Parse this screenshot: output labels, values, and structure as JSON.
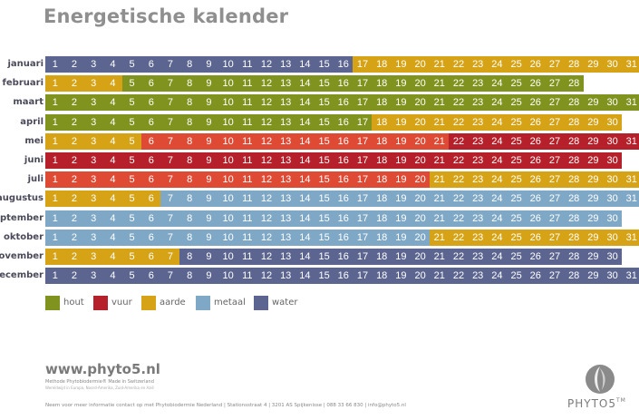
{
  "title": "Energetische kalender",
  "colors": {
    "hout": "#7f931e",
    "vuur": "#b6202a",
    "aarde": "#d7a316",
    "metaal": "#7ea8c6",
    "water": "#5c6590",
    "vuur_light": "#df4a35",
    "aarde_dark": "#cc9a1a"
  },
  "calendar": [
    {
      "month": "januari",
      "days": 31,
      "segments": [
        [
          1,
          16,
          "water"
        ],
        [
          17,
          31,
          "aarde"
        ]
      ]
    },
    {
      "month": "februari",
      "days": 28,
      "segments": [
        [
          1,
          4,
          "aarde"
        ],
        [
          5,
          28,
          "hout"
        ]
      ]
    },
    {
      "month": "maart",
      "days": 31,
      "segments": [
        [
          1,
          31,
          "hout"
        ]
      ]
    },
    {
      "month": "april",
      "days": 30,
      "segments": [
        [
          1,
          17,
          "hout"
        ],
        [
          18,
          30,
          "aarde"
        ]
      ]
    },
    {
      "month": "mei",
      "days": 31,
      "segments": [
        [
          1,
          5,
          "aarde"
        ],
        [
          6,
          21,
          "vuur_light"
        ],
        [
          22,
          31,
          "vuur"
        ]
      ]
    },
    {
      "month": "juni",
      "days": 30,
      "segments": [
        [
          1,
          30,
          "vuur"
        ]
      ]
    },
    {
      "month": "juli",
      "days": 31,
      "segments": [
        [
          1,
          20,
          "vuur_light"
        ],
        [
          21,
          31,
          "aarde"
        ]
      ]
    },
    {
      "month": "augustus",
      "days": 31,
      "segments": [
        [
          1,
          6,
          "aarde"
        ],
        [
          7,
          31,
          "metaal"
        ]
      ]
    },
    {
      "month": "september",
      "days": 30,
      "segments": [
        [
          1,
          30,
          "metaal"
        ]
      ]
    },
    {
      "month": "oktober",
      "days": 31,
      "segments": [
        [
          1,
          20,
          "metaal"
        ],
        [
          21,
          31,
          "aarde"
        ]
      ]
    },
    {
      "month": "november",
      "days": 30,
      "segments": [
        [
          1,
          7,
          "aarde"
        ],
        [
          8,
          30,
          "water"
        ]
      ]
    },
    {
      "month": "december",
      "days": 31,
      "segments": [
        [
          1,
          31,
          "water"
        ]
      ]
    }
  ],
  "legend": [
    {
      "key": "hout",
      "label": "hout"
    },
    {
      "key": "vuur",
      "label": "vuur"
    },
    {
      "key": "aarde",
      "label": "aarde"
    },
    {
      "key": "metaal",
      "label": "metaal"
    },
    {
      "key": "water",
      "label": "water"
    }
  ],
  "brand": {
    "url": "www.phyto5.nl",
    "tagline": "Methode Phytobiodermie® Made in Switzerland",
    "tagline2": "Wereldwijd in Europa, Noord-Amerika, Zuid-Amerika en Azië",
    "footer": "Neem voor meer informatie contact op met Phytobiodermie Nederland  |  Stationsstraat 4  |  3201 AS Spijkenisse  |  088 33 66 830  |  info@phyto5.nl",
    "logo_text": "PHYTO",
    "logo_num": "5",
    "logo_tm": "TM"
  }
}
